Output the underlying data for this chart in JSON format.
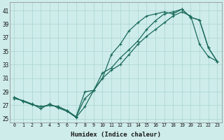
{
  "xlabel": "Humidex (Indice chaleur)",
  "bg_color": "#ceecea",
  "grid_color": "#b0d8d4",
  "line_color": "#1a6b5a",
  "xlim": [
    -0.5,
    23.5
  ],
  "ylim": [
    24.5,
    42.2
  ],
  "xticks": [
    0,
    1,
    2,
    3,
    4,
    5,
    6,
    7,
    8,
    9,
    10,
    11,
    12,
    13,
    14,
    15,
    16,
    17,
    18,
    19,
    20,
    21,
    22,
    23
  ],
  "yticks": [
    25,
    27,
    29,
    31,
    33,
    35,
    37,
    39,
    41
  ],
  "series1_x": [
    0,
    1,
    2,
    3,
    4,
    5,
    6,
    7,
    8,
    9,
    10,
    11,
    12,
    13,
    14,
    15,
    16,
    17,
    18,
    19,
    20,
    21,
    22,
    23
  ],
  "series1_y": [
    28,
    27.7,
    27.2,
    26.5,
    27.2,
    26.6,
    26.1,
    25.2,
    26.8,
    29.2,
    31.0,
    32.2,
    33.0,
    34.5,
    36.0,
    37.2,
    38.2,
    39.2,
    40.2,
    40.8,
    40.2,
    36.0,
    34.2,
    33.5
  ],
  "series2_x": [
    0,
    1,
    2,
    3,
    4,
    5,
    6,
    7,
    8,
    9,
    10,
    11,
    12,
    13,
    14,
    15,
    16,
    17,
    18,
    19,
    20,
    21,
    22,
    23
  ],
  "series2_y": [
    28.2,
    27.6,
    27.1,
    26.8,
    27.0,
    26.8,
    26.2,
    25.3,
    28.0,
    29.2,
    31.0,
    34.5,
    36.0,
    38.0,
    39.2,
    40.2,
    40.5,
    40.8,
    40.5,
    41.2,
    40.0,
    39.6,
    35.5,
    33.5
  ],
  "series3_x": [
    0,
    1,
    2,
    3,
    4,
    5,
    6,
    7,
    8,
    9,
    10,
    11,
    12,
    13,
    14,
    15,
    16,
    17,
    18,
    19,
    20,
    21,
    22,
    23
  ],
  "series3_y": [
    28.2,
    27.6,
    27.1,
    26.8,
    27.0,
    26.8,
    26.2,
    25.3,
    29.0,
    29.2,
    31.8,
    32.5,
    34.0,
    35.2,
    36.5,
    38.2,
    39.5,
    40.5,
    40.8,
    41.2,
    40.0,
    39.6,
    35.5,
    33.5
  ],
  "markersize": 2.8,
  "linewidth": 0.9
}
